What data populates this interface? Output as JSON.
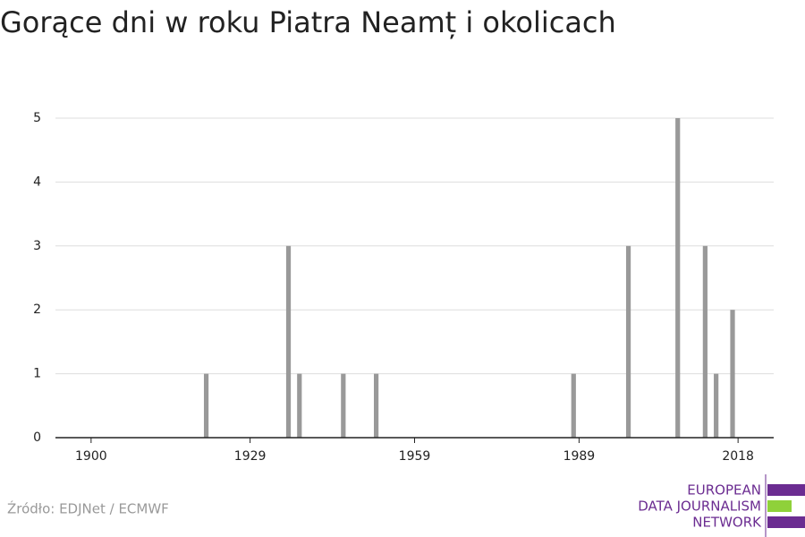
{
  "chart_data": {
    "type": "bar",
    "title": "Gorące dni w roku Piatra Neamț i okolicach",
    "x": [
      1921,
      1936,
      1938,
      1946,
      1952,
      1988,
      1998,
      2007,
      2012,
      2014,
      2017
    ],
    "values": [
      1,
      3,
      1,
      1,
      1,
      1,
      3,
      5,
      3,
      1,
      2
    ],
    "color": "#999999",
    "xlim": [
      1893.5,
      2024.5
    ],
    "xticks": [
      1900,
      1929,
      1959,
      1989,
      2018
    ],
    "ylim": [
      0,
      5
    ],
    "yticks": [
      0,
      1,
      2,
      3,
      4,
      5
    ],
    "grid": true,
    "source": "Źródło: EDJNet / ECMWF",
    "logo": [
      "EUROPEAN",
      "DATA JOURNALISM",
      "NETWORK"
    ]
  }
}
